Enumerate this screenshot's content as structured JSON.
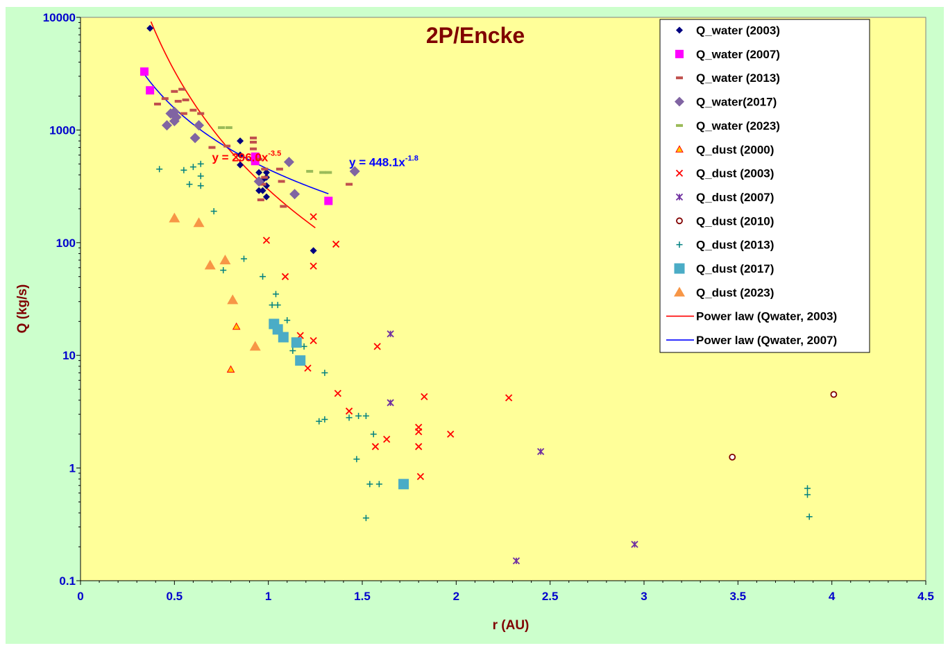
{
  "chart_data": {
    "type": "scatter",
    "title": "2P/Encke",
    "xlabel": "r (AU)",
    "ylabel": "Q (kg/s)",
    "xlim": [
      0,
      4.5
    ],
    "ylim": [
      0.1,
      10000
    ],
    "yscale": "log",
    "x_ticks": [
      "0",
      "0.5",
      "1",
      "1.5",
      "2",
      "2.5",
      "3",
      "3.5",
      "4",
      "4.5"
    ],
    "y_ticks": [
      "0.1",
      "1",
      "10",
      "100",
      "1000",
      "10000"
    ],
    "grid": false,
    "legend_position": "top-right",
    "colors": {
      "outer_bg": "#ccffcc",
      "plot_bg": "#ffff99",
      "title": "#800000",
      "axis_label": "#800000",
      "tick_label": "#0000cc"
    },
    "annotations": [
      {
        "text": "y = 296.0x",
        "sup": "-3.5",
        "color": "#ff0000",
        "x": 0.7,
        "y": 500
      },
      {
        "text": "y = 448.1x",
        "sup": "-1.8",
        "color": "#0000ff",
        "x": 1.43,
        "y": 450
      }
    ],
    "series": [
      {
        "name": "Q_water (2003)",
        "marker": "diamond",
        "color": "#000080",
        "points": [
          [
            0.37,
            8000
          ],
          [
            0.85,
            800
          ],
          [
            0.85,
            600
          ],
          [
            0.85,
            490
          ],
          [
            0.95,
            420
          ],
          [
            0.99,
            420
          ],
          [
            0.99,
            380
          ],
          [
            0.97,
            360
          ],
          [
            0.99,
            320
          ],
          [
            0.95,
            290
          ],
          [
            0.97,
            290
          ],
          [
            0.99,
            255
          ],
          [
            1.24,
            85
          ]
        ]
      },
      {
        "name": "Q_water (2007)",
        "marker": "square",
        "color": "#ff00ff",
        "points": [
          [
            0.34,
            3300
          ],
          [
            0.37,
            2250
          ],
          [
            0.93,
            580
          ],
          [
            0.93,
            530
          ],
          [
            1.32,
            235
          ]
        ]
      },
      {
        "name": "Q_water (2013)",
        "marker": "dash",
        "color": "#c0504d",
        "points": [
          [
            0.41,
            1700
          ],
          [
            0.45,
            1900
          ],
          [
            0.5,
            2200
          ],
          [
            0.54,
            2300
          ],
          [
            0.52,
            1800
          ],
          [
            0.56,
            1850
          ],
          [
            0.55,
            1400
          ],
          [
            0.6,
            1500
          ],
          [
            0.64,
            1400
          ],
          [
            0.7,
            700
          ],
          [
            0.78,
            720
          ],
          [
            0.92,
            850
          ],
          [
            0.92,
            780
          ],
          [
            0.92,
            680
          ],
          [
            0.95,
            550
          ],
          [
            0.98,
            450
          ],
          [
            0.98,
            380
          ],
          [
            0.97,
            330
          ],
          [
            0.96,
            240
          ],
          [
            1.06,
            450
          ],
          [
            1.07,
            350
          ],
          [
            1.08,
            210
          ],
          [
            1.43,
            330
          ]
        ]
      },
      {
        "name": "Q_water(2017)",
        "marker": "diamond",
        "color": "#8064a2",
        "points": [
          [
            0.46,
            1100
          ],
          [
            0.48,
            1400
          ],
          [
            0.5,
            1200
          ],
          [
            0.51,
            1300
          ],
          [
            0.5,
            1450
          ],
          [
            0.61,
            850
          ],
          [
            0.63,
            1100
          ],
          [
            0.95,
            350
          ],
          [
            1.11,
            520
          ],
          [
            1.14,
            270
          ],
          [
            1.46,
            430
          ]
        ]
      },
      {
        "name": "Q_water (2023)",
        "marker": "dash",
        "color": "#9bbb59",
        "points": [
          [
            0.75,
            1050
          ],
          [
            0.79,
            1050
          ],
          [
            1.22,
            430
          ],
          [
            1.29,
            420
          ],
          [
            1.32,
            420
          ]
        ]
      },
      {
        "name": "Q_dust (2000)",
        "marker": "triangle-small",
        "color": "#ffcc00",
        "points": [
          [
            0.83,
            18
          ],
          [
            0.8,
            7.5
          ]
        ]
      },
      {
        "name": "Q_dust (2003)",
        "marker": "x",
        "color": "#ff0000",
        "points": [
          [
            0.99,
            105
          ],
          [
            1.24,
            170
          ],
          [
            1.36,
            97
          ],
          [
            1.24,
            62
          ],
          [
            1.09,
            50
          ],
          [
            1.17,
            15
          ],
          [
            1.24,
            13.5
          ],
          [
            1.21,
            7.7
          ],
          [
            1.58,
            12
          ],
          [
            1.37,
            4.6
          ],
          [
            1.43,
            3.2
          ],
          [
            1.57,
            1.55
          ],
          [
            1.63,
            1.8
          ],
          [
            1.8,
            2.3
          ],
          [
            1.8,
            2.1
          ],
          [
            1.8,
            1.55
          ],
          [
            1.81,
            0.84
          ],
          [
            1.83,
            4.3
          ],
          [
            1.97,
            2.0
          ],
          [
            2.28,
            4.2
          ]
        ]
      },
      {
        "name": "Q_dust (2007)",
        "marker": "star",
        "color": "#7030a0",
        "points": [
          [
            1.65,
            15.5
          ],
          [
            1.65,
            3.8
          ],
          [
            2.45,
            1.4
          ],
          [
            2.32,
            0.15
          ],
          [
            2.95,
            0.21
          ]
        ]
      },
      {
        "name": "Q_dust (2010)",
        "marker": "circle",
        "color": "#800000",
        "points": [
          [
            4.01,
            4.5
          ],
          [
            3.47,
            1.25
          ]
        ]
      },
      {
        "name": "Q_dust (2013)",
        "marker": "plus",
        "color": "#008080",
        "points": [
          [
            0.42,
            450
          ],
          [
            0.55,
            440
          ],
          [
            0.58,
            330
          ],
          [
            0.6,
            470
          ],
          [
            0.64,
            500
          ],
          [
            0.64,
            390
          ],
          [
            0.64,
            320
          ],
          [
            0.71,
            190
          ],
          [
            0.76,
            57
          ],
          [
            0.87,
            72
          ],
          [
            0.97,
            50
          ],
          [
            1.02,
            28
          ],
          [
            1.04,
            35
          ],
          [
            1.05,
            28
          ],
          [
            1.1,
            20.5
          ],
          [
            1.13,
            11
          ],
          [
            1.19,
            12
          ],
          [
            1.3,
            7
          ],
          [
            1.27,
            2.6
          ],
          [
            1.3,
            2.7
          ],
          [
            1.43,
            2.8
          ],
          [
            1.48,
            2.9
          ],
          [
            1.52,
            2.9
          ],
          [
            1.56,
            2.0
          ],
          [
            1.47,
            1.2
          ],
          [
            1.54,
            0.72
          ],
          [
            1.59,
            0.72
          ],
          [
            1.52,
            0.36
          ],
          [
            3.87,
            0.66
          ],
          [
            3.87,
            0.58
          ],
          [
            3.88,
            0.37
          ]
        ]
      },
      {
        "name": "Q_dust (2017)",
        "marker": "square-large",
        "color": "#4bacc6",
        "points": [
          [
            1.03,
            19
          ],
          [
            1.05,
            17
          ],
          [
            1.08,
            14.5
          ],
          [
            1.15,
            13
          ],
          [
            1.17,
            9
          ],
          [
            1.72,
            0.72
          ]
        ]
      },
      {
        "name": "Q_dust (2023)",
        "marker": "triangle",
        "color": "#f79646",
        "points": [
          [
            0.5,
            165
          ],
          [
            0.63,
            150
          ],
          [
            0.69,
            63
          ],
          [
            0.77,
            70
          ],
          [
            0.81,
            31
          ],
          [
            0.93,
            12
          ]
        ]
      }
    ],
    "fits": [
      {
        "name": "Power law (Qwater, 2003)",
        "color": "#ff0000",
        "a": 296.0,
        "b": -3.5,
        "x_range": [
          0.375,
          1.25
        ]
      },
      {
        "name": "Power law (Qwater, 2007)",
        "color": "#0000ff",
        "a": 448.1,
        "b": -1.8,
        "x_range": [
          0.34,
          1.32
        ]
      }
    ]
  }
}
